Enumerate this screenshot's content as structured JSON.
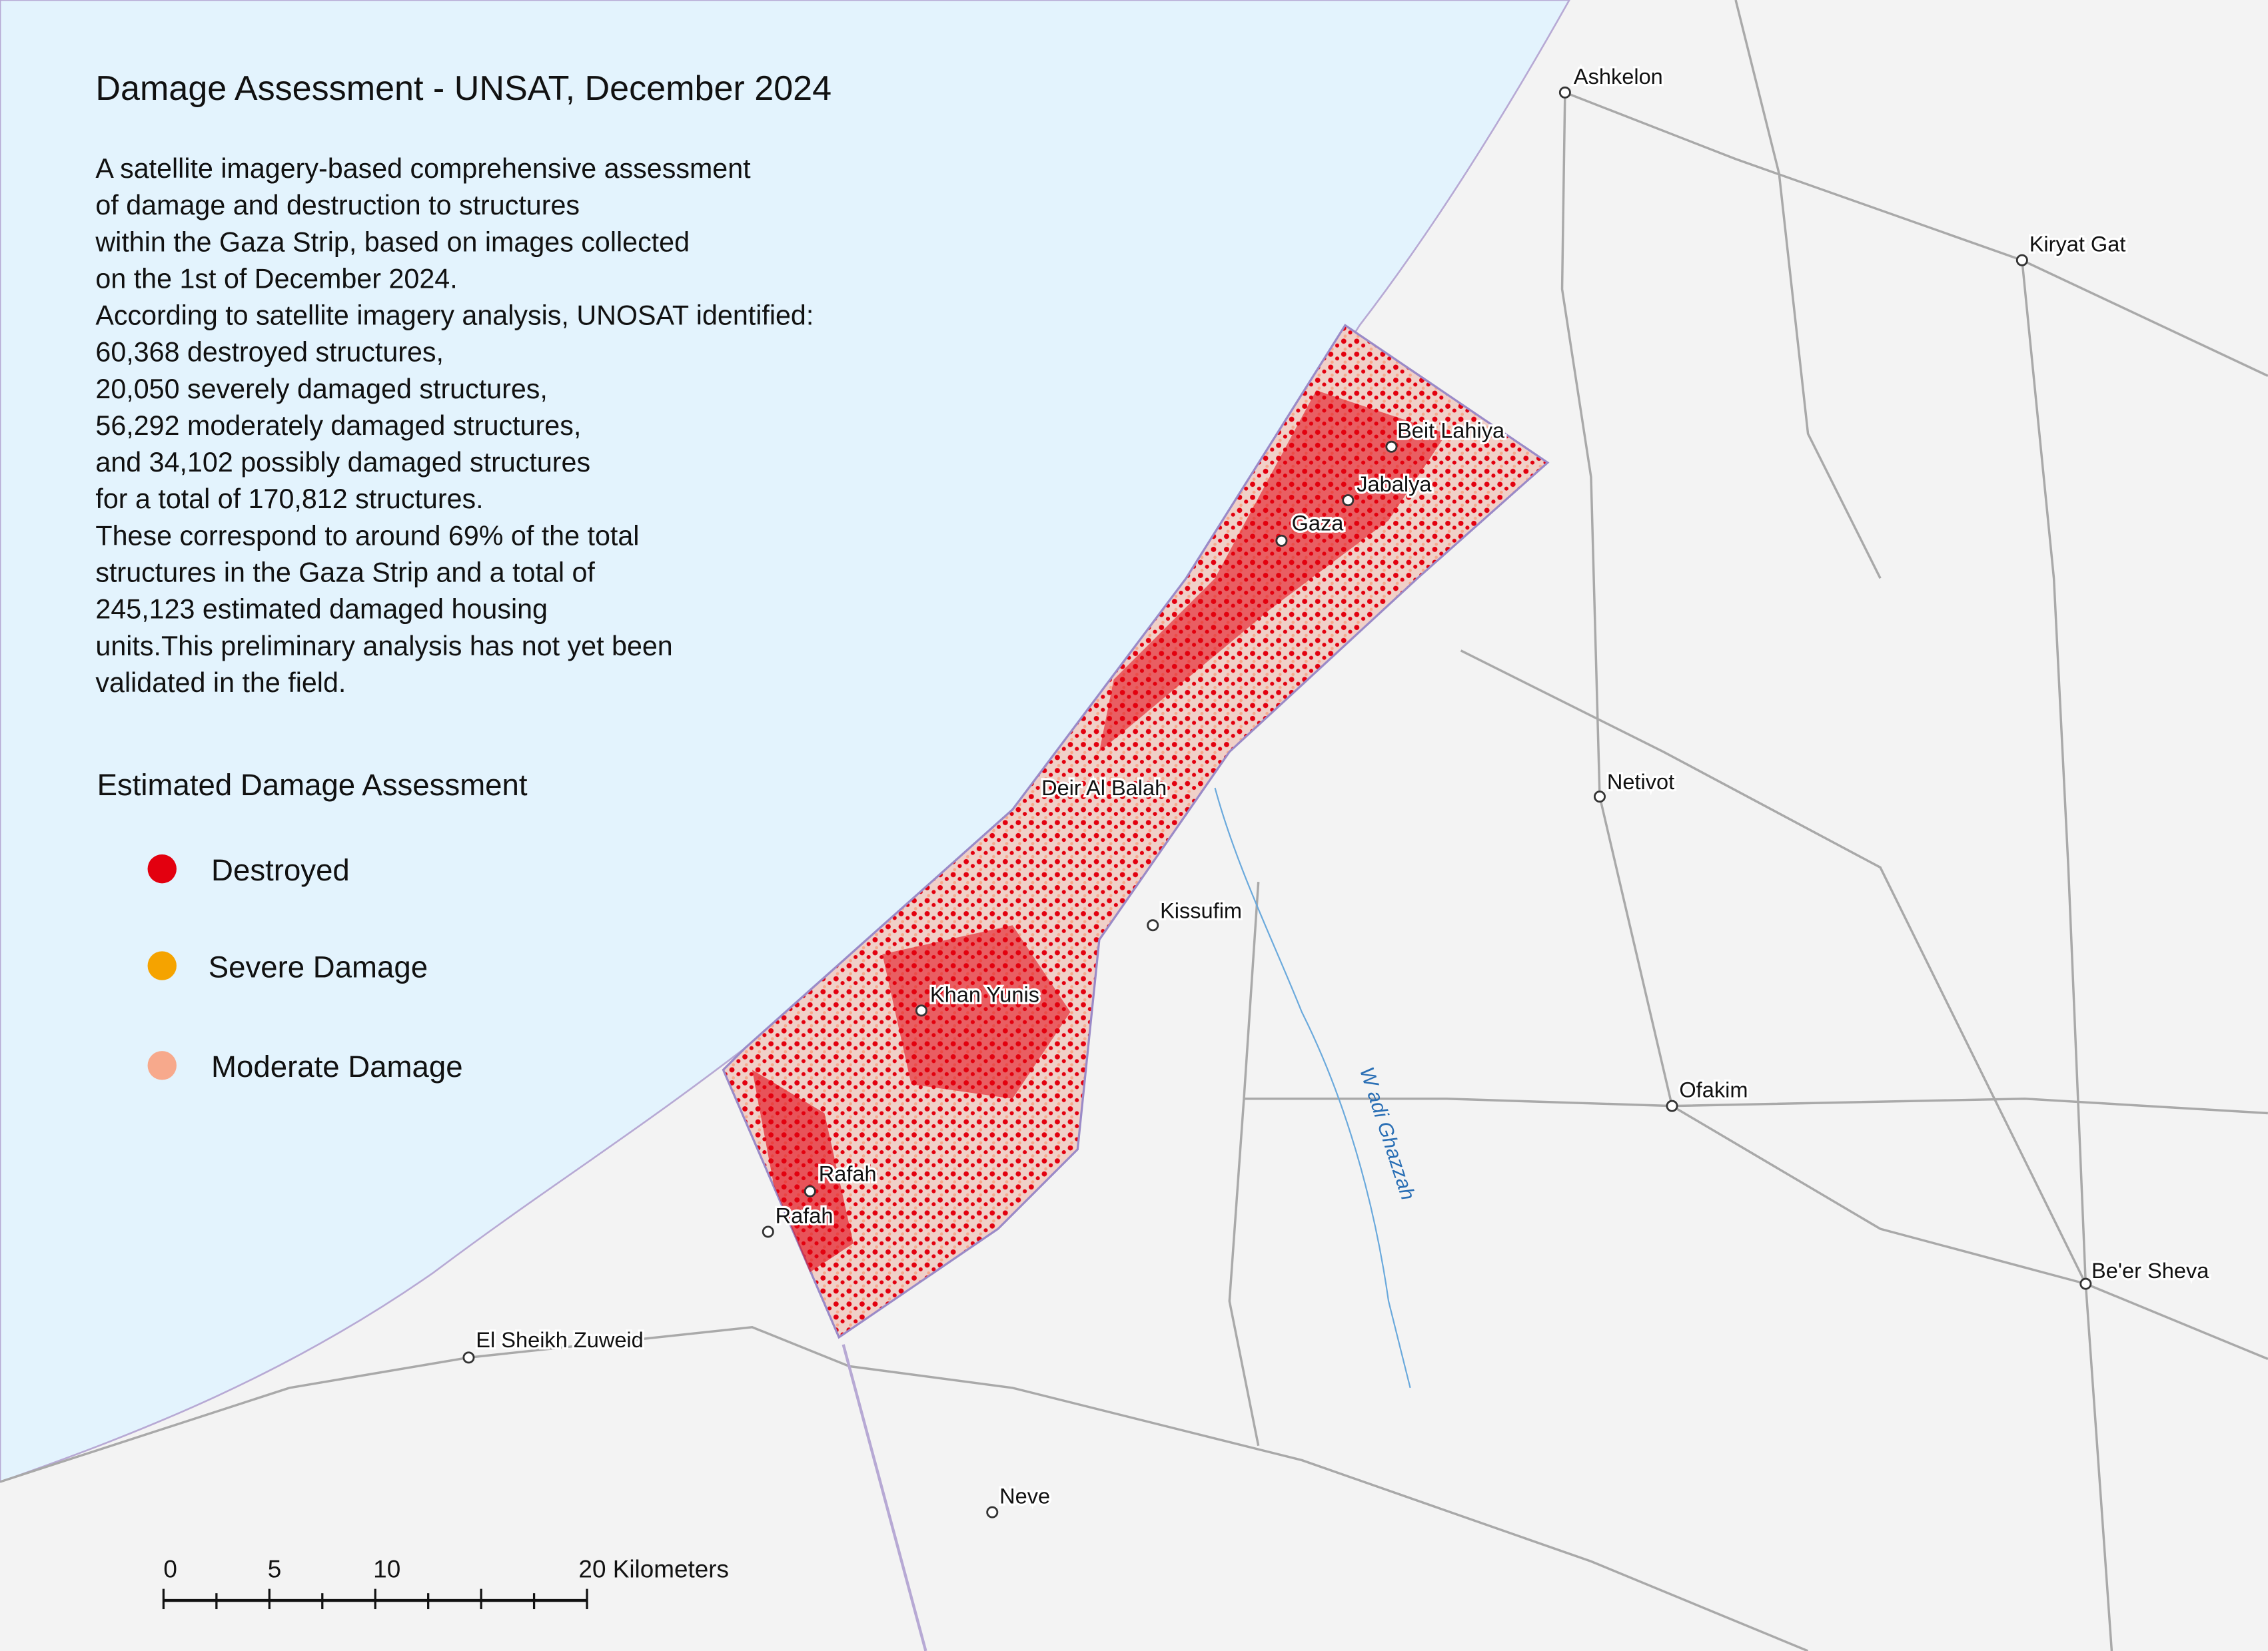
{
  "title": "Damage Assessment - UNSAT, December 2024",
  "description": [
    "A satellite imagery-based comprehensive assessment",
    "of damage and destruction to structures",
    "within the Gaza Strip, based on images collected",
    "on the 1st of December 2024.",
    "According to satellite imagery analysis, UNOSAT identified:",
    "60,368 destroyed structures,",
    "20,050 severely damaged structures,",
    "56,292 moderately damaged structures,",
    "and 34,102 possibly damaged structures",
    "for a total of 170,812 structures.",
    "These correspond to around 69% of the total",
    "structures in the Gaza Strip and a total of",
    "245,123 estimated damaged housing",
    "units.This preliminary analysis has not yet been",
    "validated in the field."
  ],
  "legend": {
    "title": "Estimated Damage Assessment",
    "items": [
      {
        "label": "Destroyed",
        "color": "#e3000f"
      },
      {
        "label": "Severe Damage",
        "color": "#f5a300"
      },
      {
        "label": "Moderate Damage",
        "color": "#f7a98c"
      }
    ]
  },
  "places": [
    "Ashkelon",
    "Kiryat Gat",
    "Beit Lahiya",
    "Jabalya",
    "Gaza",
    "Deir Al Balah",
    "Kissufim",
    "Khan Yunis",
    "Netivot",
    "Ofakim",
    "Rafah",
    "Rafah",
    "El Sheikh Zuweid",
    "Neve",
    "Be'er Sheva"
  ],
  "river": "W adi Ghazzah",
  "scale_bar": [
    "0",
    "5",
    "10",
    "20 Kilometers"
  ]
}
